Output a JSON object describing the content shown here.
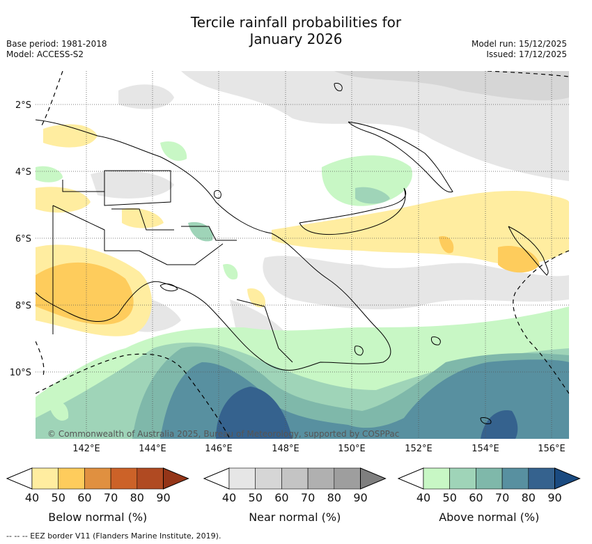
{
  "title_line1": "Tercile rainfall probabilities for",
  "title_line2": "January 2026",
  "meta": {
    "base_period": "Base period: 1981-2018",
    "model": "Model: ACCESS-S2",
    "model_run": "Model run: 15/12/2025",
    "issued": "Issued: 17/12/2025"
  },
  "map": {
    "lat_labels": [
      "2°S",
      "4°S",
      "6°S",
      "8°S",
      "10°S"
    ],
    "lon_labels": [
      "142°E",
      "144°E",
      "146°E",
      "148°E",
      "150°E",
      "152°E",
      "154°E",
      "156°E"
    ],
    "copyright": "© Commonwealth of Australia 2025, Bureau of Meteorology, supported by COSPPac"
  },
  "colorbars": [
    {
      "label": "Below normal (%)",
      "ticks": [
        "40",
        "50",
        "60",
        "70",
        "80",
        "90"
      ],
      "colors": [
        "#ffeda0",
        "#fecc5c",
        "#e09040",
        "#cc6228",
        "#b04a22",
        "#943518"
      ]
    },
    {
      "label": "Near normal (%)",
      "ticks": [
        "40",
        "50",
        "60",
        "70",
        "80",
        "90"
      ],
      "colors": [
        "#e6e6e6",
        "#d6d6d6",
        "#c4c4c4",
        "#b0b0b0",
        "#9e9e9e",
        "#7f7f7f"
      ]
    },
    {
      "label": "Above normal (%)",
      "ticks": [
        "40",
        "50",
        "60",
        "70",
        "80",
        "90"
      ],
      "colors": [
        "#c8f7c5",
        "#9fd4b8",
        "#7fb8aa",
        "#5890a0",
        "#35628e",
        "#1a4a80"
      ]
    }
  ],
  "footer": "--  --  -- EEZ border V11 (Flanders Marine Institute, 2019)."
}
